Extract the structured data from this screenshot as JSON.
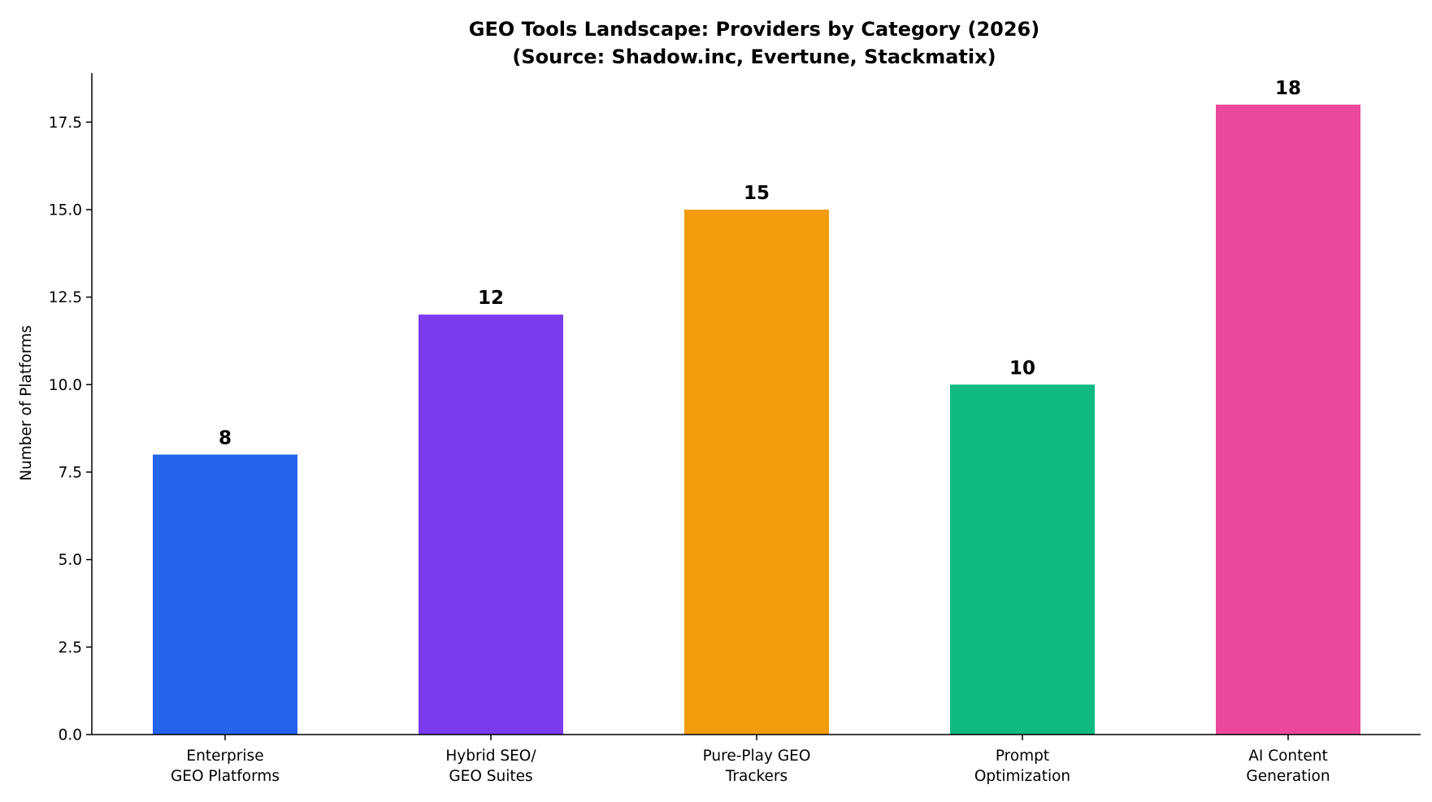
{
  "chart_data": {
    "type": "bar",
    "title": "GEO Tools Landscape: Providers by Category (2026)",
    "subtitle": "(Source: Shadow.inc, Evertune, Stackmatix)",
    "xlabel": "",
    "ylabel": "Number of Platforms",
    "ylim": [
      0,
      18.9
    ],
    "yticks": [
      "0.0",
      "2.5",
      "5.0",
      "7.5",
      "10.0",
      "12.5",
      "15.0",
      "17.5"
    ],
    "categories": [
      [
        "Enterprise",
        "GEO Platforms"
      ],
      [
        "Hybrid SEO/",
        "GEO Suites"
      ],
      [
        "Pure-Play GEO",
        "Trackers"
      ],
      [
        "Prompt",
        "Optimization"
      ],
      [
        "AI Content",
        "Generation"
      ]
    ],
    "values": [
      8,
      12,
      15,
      10,
      18
    ],
    "data_labels": [
      "8",
      "12",
      "15",
      "10",
      "18"
    ],
    "colors": [
      "#2563eb",
      "#7c3aed",
      "#f39c0b",
      "#10b981",
      "#ec4899"
    ],
    "grid": false,
    "legend": "none"
  }
}
